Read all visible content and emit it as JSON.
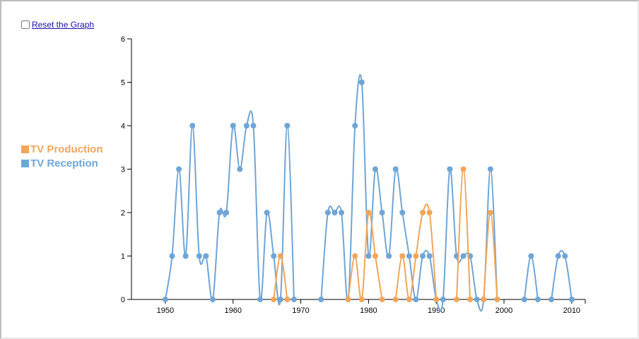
{
  "controls": {
    "reset_label": "Reset the Graph"
  },
  "legend": [
    {
      "label": "TV Production",
      "color": "#f0a65a"
    },
    {
      "label": "TV Reception",
      "color": "#6fa5d6"
    }
  ],
  "chart_data": {
    "type": "line",
    "title": "",
    "xlabel": "",
    "ylabel": "",
    "xlim": [
      1945,
      2012
    ],
    "ylim": [
      0,
      6
    ],
    "x_ticks": [
      1950,
      1960,
      1970,
      1980,
      1990,
      2000,
      2010
    ],
    "y_ticks": [
      0,
      1,
      2,
      3,
      4,
      5,
      6
    ],
    "grid": false,
    "legend_position": "left",
    "series": [
      {
        "name": "TV Reception",
        "color": "#6fa5d6",
        "x": [
          1950,
          1951,
          1952,
          1953,
          1954,
          1955,
          1956,
          1957,
          1958,
          1959,
          1960,
          1961,
          1962,
          1963,
          1964,
          1965,
          1966,
          1967,
          1968,
          1969,
          1973,
          1974,
          1975,
          1976,
          1977,
          1978,
          1979,
          1980,
          1981,
          1982,
          1983,
          1984,
          1985,
          1986,
          1987,
          1988,
          1989,
          1990,
          1991,
          1992,
          1993,
          1994,
          1995,
          1996,
          1997,
          1998,
          1999,
          2003,
          2004,
          2005,
          2007,
          2008,
          2009,
          2010
        ],
        "y": [
          0,
          1,
          3,
          1,
          4,
          1,
          1,
          0,
          2,
          2,
          4,
          3,
          4,
          4,
          0,
          2,
          1,
          0,
          4,
          0,
          0,
          2,
          2,
          2,
          0,
          4,
          5,
          1,
          3,
          2,
          1,
          3,
          2,
          1,
          0,
          1,
          1,
          0,
          0,
          3,
          1,
          1,
          1,
          0,
          0,
          3,
          0,
          0,
          1,
          0,
          0,
          1,
          1,
          0
        ]
      },
      {
        "name": "TV Production",
        "color": "#f0a65a",
        "x": [
          1966,
          1967,
          1968,
          1977,
          1978,
          1979,
          1980,
          1981,
          1982,
          1984,
          1985,
          1986,
          1987,
          1988,
          1989,
          1990,
          1993,
          1994,
          1995,
          1997,
          1998,
          1999
        ],
        "y": [
          0,
          1,
          0,
          0,
          1,
          0,
          2,
          1,
          0,
          0,
          1,
          0,
          1,
          2,
          2,
          0,
          0,
          3,
          0,
          0,
          2,
          0
        ]
      }
    ]
  }
}
